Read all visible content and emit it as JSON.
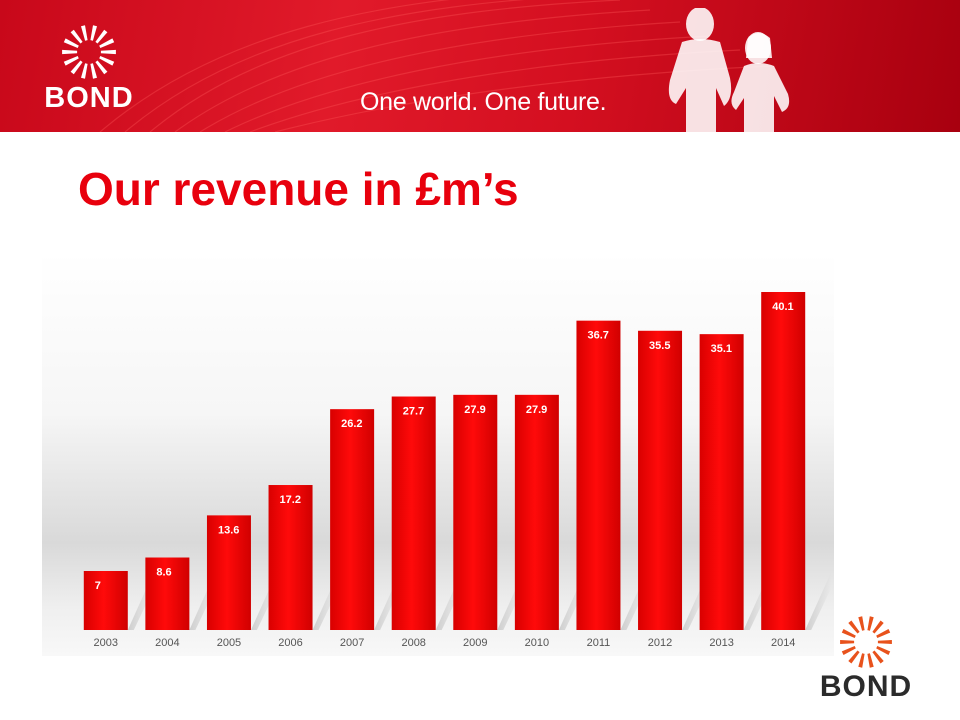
{
  "header": {
    "logo_text": "BOND",
    "tagline": "One world. One future."
  },
  "title": "Our revenue in £m’s",
  "footer_logo_text": "BOND",
  "colors": {
    "brand_red": "#e8000d",
    "bar_red": "#ee0000",
    "banner_red": "#d40f20"
  },
  "chart_data": {
    "type": "bar",
    "title": "",
    "xlabel": "",
    "ylabel": "",
    "categories": [
      "2003",
      "2004",
      "2005",
      "2006",
      "2007",
      "2008",
      "2009",
      "2010",
      "2011",
      "2012",
      "2013",
      "2014"
    ],
    "values": [
      7,
      8.6,
      13.6,
      17.2,
      26.2,
      27.7,
      27.9,
      27.9,
      36.7,
      35.5,
      35.1,
      40.1
    ],
    "data_labels": [
      "7",
      "8.6",
      "13.6",
      "17.2",
      "26.2",
      "27.7",
      "27.9",
      "27.9",
      "36.7",
      "35.5",
      "35.1",
      "40.1"
    ],
    "ylim": [
      0,
      40.1
    ],
    "grid": false,
    "legend": "none",
    "y_axis_visible": false
  }
}
